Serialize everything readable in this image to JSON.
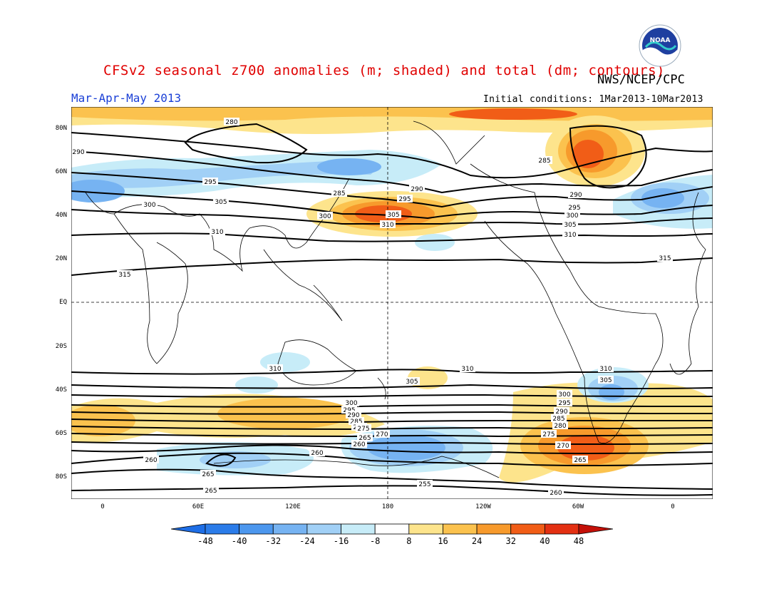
{
  "title": "CFSv2 seasonal z700 anomalies (m; shaded) and total (dm; contours)",
  "agency": "NWS/NCEP/CPC",
  "logo_text": "NOAA",
  "season": "Mar-Apr-May 2013",
  "initial_conditions": "Initial conditions: 1Mar2013-10Mar2013",
  "lat_labels": [
    "80N",
    "60N",
    "40N",
    "20N",
    "EQ",
    "20S",
    "40S",
    "60S",
    "80S"
  ],
  "lon_labels": [
    "0",
    "60E",
    "120E",
    "180",
    "120W",
    "60W",
    "0"
  ],
  "colorbar": {
    "labels": [
      "-48",
      "-40",
      "-32",
      "-24",
      "-16",
      "-8",
      "8",
      "16",
      "24",
      "32",
      "40",
      "48"
    ],
    "colors": [
      "#1e6ee6",
      "#2b7ce9",
      "#4c97ee",
      "#76b3f2",
      "#a1d0f6",
      "#c7ecf8",
      "#ffffff",
      "#fde48c",
      "#fbc24e",
      "#f79a2c",
      "#f15d17",
      "#e33012",
      "#c41008"
    ]
  },
  "contours": {
    "nh_labels": [
      "280",
      "290",
      "295",
      "300",
      "305",
      "310",
      "315",
      "285",
      "290",
      "295",
      "300",
      "305",
      "310",
      "285",
      "290",
      "295",
      "300",
      "305",
      "310",
      "315"
    ],
    "sh_labels": [
      "310",
      "305",
      "300",
      "295",
      "290",
      "285",
      "280",
      "275",
      "270",
      "265",
      "260",
      "255",
      "260",
      "265",
      "270",
      "275",
      "280",
      "285",
      "290",
      "295",
      "300",
      "305",
      "310",
      "310",
      "260",
      "265",
      "260",
      "265"
    ]
  }
}
